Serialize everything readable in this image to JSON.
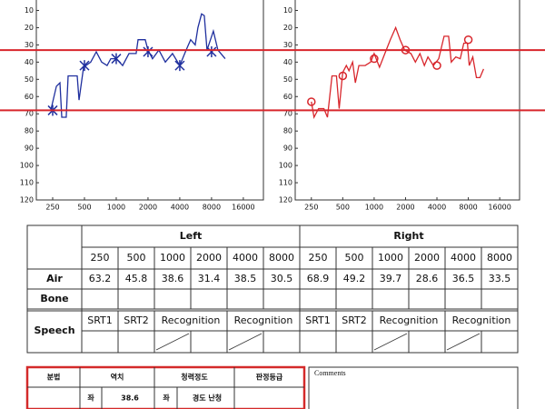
{
  "chart_data": [
    {
      "type": "line",
      "xlog": true,
      "y_inverted": true,
      "grid": false,
      "xlim": [
        175,
        24800
      ],
      "ylim": [
        5,
        120
      ],
      "xticks": [
        250,
        500,
        1000,
        2000,
        4000,
        8000,
        16000
      ],
      "yticks": [
        10,
        20,
        30,
        40,
        50,
        60,
        70,
        80,
        90,
        100,
        110,
        120
      ],
      "series": [
        {
          "color": "#1f2f9e",
          "x": [
            240,
            271,
            293,
            305,
            336,
            350,
            427,
            444,
            490,
            574,
            647,
            728,
            820,
            888,
            1000,
            1149,
            1320,
            1546,
            1609,
            1884,
            2000,
            2208,
            2537,
            2915,
            3413,
            4000,
            4595,
            5073,
            5602,
            5943,
            6435,
            6827,
            7245,
            8325,
            9190,
            10767
          ],
          "values": [
            68,
            54,
            52,
            72,
            72,
            48,
            48,
            62,
            43,
            40,
            34,
            40,
            42,
            38,
            38,
            42,
            35,
            35,
            27,
            27,
            33,
            38,
            33,
            40,
            35,
            42,
            33,
            27,
            30,
            20,
            12,
            13,
            33,
            22,
            33,
            38
          ]
        },
        {
          "color": "#1f2f9e",
          "marker": "asterisk",
          "x": [
            250,
            500,
            1000,
            2000,
            4000,
            8000
          ],
          "values": [
            68,
            42,
            38,
            34,
            42,
            34
          ]
        }
      ]
    },
    {
      "type": "line",
      "xlog": true,
      "y_inverted": true,
      "grid": false,
      "xlim": [
        175,
        24800
      ],
      "ylim": [
        5,
        120
      ],
      "xticks": [
        250,
        500,
        1000,
        2000,
        4000,
        8000,
        16000
      ],
      "yticks": [
        10,
        20,
        30,
        40,
        50,
        60,
        70,
        80,
        90,
        100,
        110,
        120
      ],
      "series": [
        {
          "color": "#d8262c",
          "x": [
            250,
            265,
            293,
            330,
            357,
            394,
            435,
            462,
            500,
            541,
            574,
            622,
            660,
            714,
            820,
            924,
            1000,
            1126,
            1268,
            1428,
            1609,
            1776,
            1960,
            2252,
            2487,
            2746,
            3031,
            3281,
            3696,
            4162,
            4688,
            5174,
            5491,
            6063,
            6694,
            7245,
            7840,
            8161,
            8833,
            9562,
            10350,
            11200
          ],
          "values": [
            63,
            72,
            67,
            67,
            72,
            48,
            48,
            67,
            46,
            42,
            45,
            40,
            52,
            42,
            42,
            40,
            35,
            43,
            35,
            27,
            20,
            27,
            33,
            35,
            40,
            35,
            42,
            37,
            42,
            38,
            25,
            25,
            40,
            37,
            38,
            29,
            29,
            42,
            37,
            49,
            49,
            44
          ]
        },
        {
          "color": "#d8262c",
          "marker": "circle",
          "x": [
            250,
            500,
            1000,
            2000,
            4000,
            8000
          ],
          "values": [
            63,
            48,
            38,
            33,
            42,
            27
          ]
        }
      ]
    }
  ],
  "reference_lines": {
    "color": "#d8262c",
    "values": [
      33,
      68
    ]
  },
  "hearing_table": {
    "row_labels": {
      "air": "Air",
      "bone": "Bone",
      "speech": "Speech"
    },
    "sides": [
      {
        "label": "Left",
        "frequencies": [
          250,
          500,
          1000,
          2000,
          4000,
          8000
        ],
        "air": [
          63.2,
          45.8,
          38.6,
          31.4,
          38.5,
          30.5
        ],
        "speech_headers": [
          "SRT1",
          "SRT2",
          "Recognition",
          "Recognition"
        ]
      },
      {
        "label": "Right",
        "frequencies": [
          250,
          500,
          1000,
          2000,
          4000,
          8000
        ],
        "air": [
          68.9,
          49.2,
          39.7,
          28.6,
          36.5,
          33.5
        ],
        "speech_headers": [
          "SRT1",
          "SRT2",
          "Recognition",
          "Recognition"
        ]
      }
    ]
  },
  "summary_table": {
    "headers": [
      "분법",
      "역치",
      "청력정도",
      "판정등급"
    ],
    "row": [
      "좌",
      38.6,
      "좌",
      "경도 난청"
    ]
  },
  "comments": {
    "title": "Comments"
  }
}
